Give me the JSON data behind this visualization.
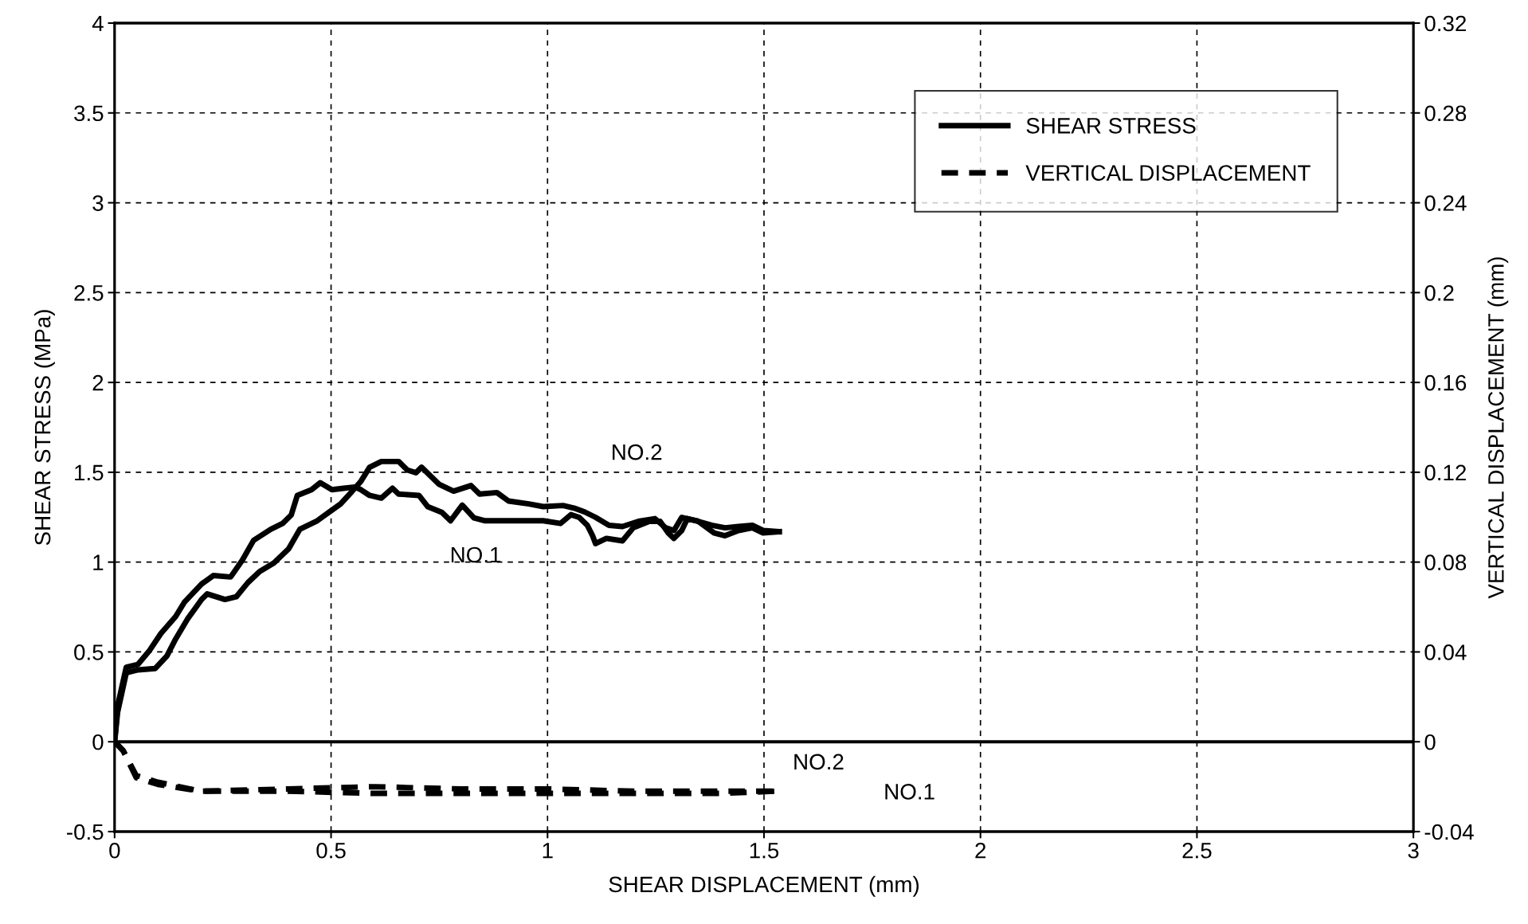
{
  "chart_data": {
    "type": "line",
    "xlabel": "SHEAR DISPLACEMENT (mm)",
    "ylabel": "SHEAR STRESS (MPa)",
    "y2label": "VERTICAL DISPLACEMENT (mm)",
    "xlim": [
      0,
      3
    ],
    "xticks": [
      0,
      0.5,
      1,
      1.5,
      2,
      2.5,
      3
    ],
    "ylim": [
      -0.5,
      4
    ],
    "yticks": [
      -0.5,
      0,
      0.5,
      1,
      1.5,
      2,
      2.5,
      3,
      3.5,
      4
    ],
    "y2lim": [
      -0.04,
      0.32
    ],
    "y2ticks": [
      -0.04,
      0,
      0.04,
      0.08,
      0.12,
      0.16,
      0.2,
      0.24,
      0.28,
      0.32
    ],
    "grid": true,
    "legend": "top right",
    "ref_lines": [
      {
        "axis": "y",
        "value": 0,
        "color": "#000000",
        "line_style": "solid"
      }
    ],
    "annotations": [
      "NO.2",
      "NO.1",
      "NO.2",
      "NO.1"
    ],
    "series": [
      {
        "name": "SHEAR STRESS",
        "color": "#000000",
        "line_style": "solid",
        "x": [
          0,
          0.007,
          0.027,
          0.054,
          0.081,
          0.107,
          0.141,
          0.161,
          0.201,
          0.228,
          0.268,
          0.295,
          0.321,
          0.361,
          0.388,
          0.408,
          0.422,
          0.455,
          0.475,
          0.502,
          0.529,
          0.555,
          0.569,
          0.589,
          0.616,
          0.642,
          0.656,
          0.703,
          0.723,
          0.756,
          0.776,
          0.803,
          0.83,
          0.856,
          0.923,
          0.99,
          1.03,
          1.054,
          1.073,
          1.092,
          1.104,
          1.111,
          1.136,
          1.173,
          1.198,
          1.235,
          1.26,
          1.279,
          1.292,
          1.31,
          1.323,
          1.348,
          1.385,
          1.41,
          1.441,
          1.473,
          1.498,
          1.535
        ],
        "values": [
          0,
          0.2,
          0.415,
          0.431,
          0.509,
          0.603,
          0.697,
          0.776,
          0.878,
          0.925,
          0.917,
          1.011,
          1.121,
          1.183,
          1.215,
          1.262,
          1.371,
          1.403,
          1.442,
          1.403,
          1.411,
          1.418,
          1.403,
          1.371,
          1.356,
          1.411,
          1.379,
          1.371,
          1.309,
          1.277,
          1.23,
          1.317,
          1.246,
          1.23,
          1.23,
          1.23,
          1.215,
          1.264,
          1.249,
          1.205,
          1.147,
          1.103,
          1.132,
          1.118,
          1.191,
          1.227,
          1.227,
          1.162,
          1.132,
          1.176,
          1.242,
          1.227,
          1.162,
          1.147,
          1.176,
          1.191,
          1.162,
          1.169
        ]
      },
      {
        "color": "#000000",
        "line_style": "solid",
        "x": [
          0,
          0.007,
          0.027,
          0.054,
          0.094,
          0.121,
          0.141,
          0.168,
          0.201,
          0.214,
          0.255,
          0.281,
          0.308,
          0.335,
          0.368,
          0.402,
          0.428,
          0.468,
          0.495,
          0.522,
          0.549,
          0.569,
          0.589,
          0.616,
          0.656,
          0.676,
          0.696,
          0.709,
          0.749,
          0.783,
          0.823,
          0.843,
          0.883,
          0.91,
          0.957,
          0.99,
          1.036,
          1.061,
          1.086,
          1.111,
          1.142,
          1.173,
          1.21,
          1.248,
          1.273,
          1.292,
          1.31,
          1.348,
          1.379,
          1.41,
          1.441,
          1.473,
          1.498,
          1.535
        ],
        "values": [
          0,
          0.165,
          0.384,
          0.4,
          0.408,
          0.478,
          0.572,
          0.682,
          0.792,
          0.823,
          0.792,
          0.807,
          0.886,
          0.948,
          0.995,
          1.074,
          1.183,
          1.23,
          1.277,
          1.324,
          1.395,
          1.45,
          1.528,
          1.56,
          1.56,
          1.513,
          1.497,
          1.528,
          1.434,
          1.395,
          1.426,
          1.379,
          1.387,
          1.34,
          1.324,
          1.309,
          1.315,
          1.301,
          1.279,
          1.249,
          1.205,
          1.198,
          1.227,
          1.242,
          1.191,
          1.176,
          1.249,
          1.227,
          1.205,
          1.191,
          1.198,
          1.205,
          1.176,
          1.169
        ]
      },
      {
        "name": "VERTICAL DISPLACEMENT",
        "color": "#000000",
        "line_style": "dashed",
        "axis": "y2",
        "x": [
          0,
          0.02,
          0.05,
          0.1,
          0.2,
          0.4,
          0.6,
          0.8,
          1.0,
          1.2,
          1.4,
          1.53
        ],
        "values": [
          0,
          -0.004,
          -0.015,
          -0.018,
          -0.022,
          -0.022,
          -0.023,
          -0.023,
          -0.023,
          -0.023,
          -0.023,
          -0.022
        ]
      },
      {
        "color": "#000000",
        "line_style": "dashed",
        "axis": "y2",
        "x": [
          0,
          0.02,
          0.05,
          0.1,
          0.2,
          0.4,
          0.6,
          0.8,
          1.0,
          1.2,
          1.4,
          1.53
        ],
        "values": [
          0,
          -0.004,
          -0.016,
          -0.019,
          -0.022,
          -0.021,
          -0.02,
          -0.021,
          -0.021,
          -0.022,
          -0.022,
          -0.022
        ]
      }
    ]
  }
}
